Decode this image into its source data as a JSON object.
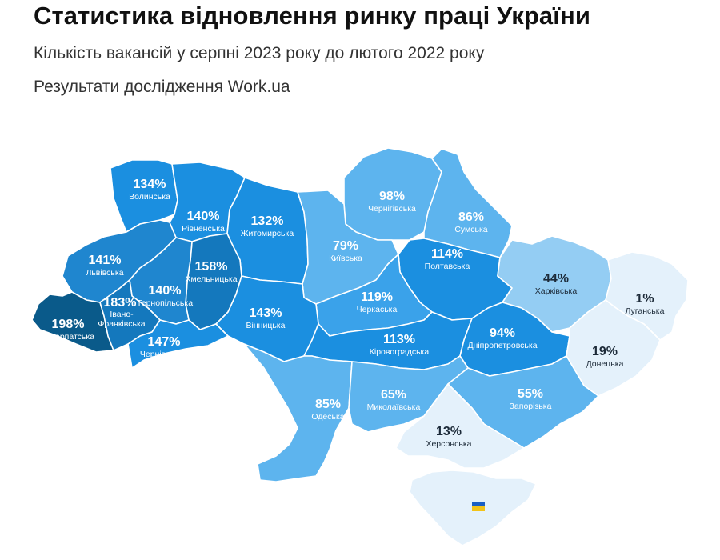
{
  "header": {
    "title": "Статистика відновлення ринку праці України",
    "subtitle": "Кількість вакансій у серпні 2023 року до лютого 2022 року",
    "source": "Результати дослідження Work.ua"
  },
  "colors": {
    "very_dark": "#0a5a8a",
    "dark": "#1478bd",
    "mid_dark": "#1f86cf",
    "mid": "#1b8fe0",
    "light_mid": "#3aa2ea",
    "light": "#5db4ee",
    "pale": "#94cdf3",
    "palest": "#e4f1fb"
  },
  "regions": [
    {
      "id": "volynska",
      "name": "Волинська",
      "value": "134%"
    },
    {
      "id": "rivnenska",
      "name": "Рівненська",
      "value": "140%"
    },
    {
      "id": "zhytomyrska",
      "name": "Житомирська",
      "value": "132%"
    },
    {
      "id": "chernihivska",
      "name": "Чернігівська",
      "value": "98%"
    },
    {
      "id": "sumska",
      "name": "Сумська",
      "value": "86%"
    },
    {
      "id": "lvivska",
      "name": "Львівська",
      "value": "141%"
    },
    {
      "id": "khmelnytska",
      "name": "Хмельницька",
      "value": "158%"
    },
    {
      "id": "kyivska",
      "name": "Київська",
      "value": "79%"
    },
    {
      "id": "poltavska",
      "name": "Полтавська",
      "value": "114%"
    },
    {
      "id": "kharkivska",
      "name": "Харківська",
      "value": "44%"
    },
    {
      "id": "luhanska",
      "name": "Луганська",
      "value": "1%"
    },
    {
      "id": "ternopilska",
      "name": "Тернопільська",
      "value": "140%"
    },
    {
      "id": "cherkaska",
      "name": "Черкаська",
      "value": "119%"
    },
    {
      "id": "zakarpatska",
      "name": "Закарпатська",
      "value": "198%"
    },
    {
      "id": "ivano_frankivska",
      "name": "Івано-Франківська",
      "value": "183%"
    },
    {
      "id": "vinnytska",
      "name": "Вінницька",
      "value": "143%"
    },
    {
      "id": "chernivetska",
      "name": "Чернівецька",
      "value": "147%"
    },
    {
      "id": "kirovohradska",
      "name": "Кіровоградська",
      "value": "113%"
    },
    {
      "id": "dnipropetrovska",
      "name": "Дніпропетровська",
      "value": "94%"
    },
    {
      "id": "donetska",
      "name": "Донецька",
      "value": "19%"
    },
    {
      "id": "odeska",
      "name": "Одеська",
      "value": "85%"
    },
    {
      "id": "mykolaivska",
      "name": "Миколаївська",
      "value": "65%"
    },
    {
      "id": "zaporizka",
      "name": "Запорізька",
      "value": "55%"
    },
    {
      "id": "khersonska",
      "name": "Херсонська",
      "value": "13%"
    },
    {
      "id": "crimea",
      "name": "",
      "value": ""
    }
  ],
  "flag": {
    "top": "#1a5fc4",
    "bottom": "#f2c318"
  }
}
